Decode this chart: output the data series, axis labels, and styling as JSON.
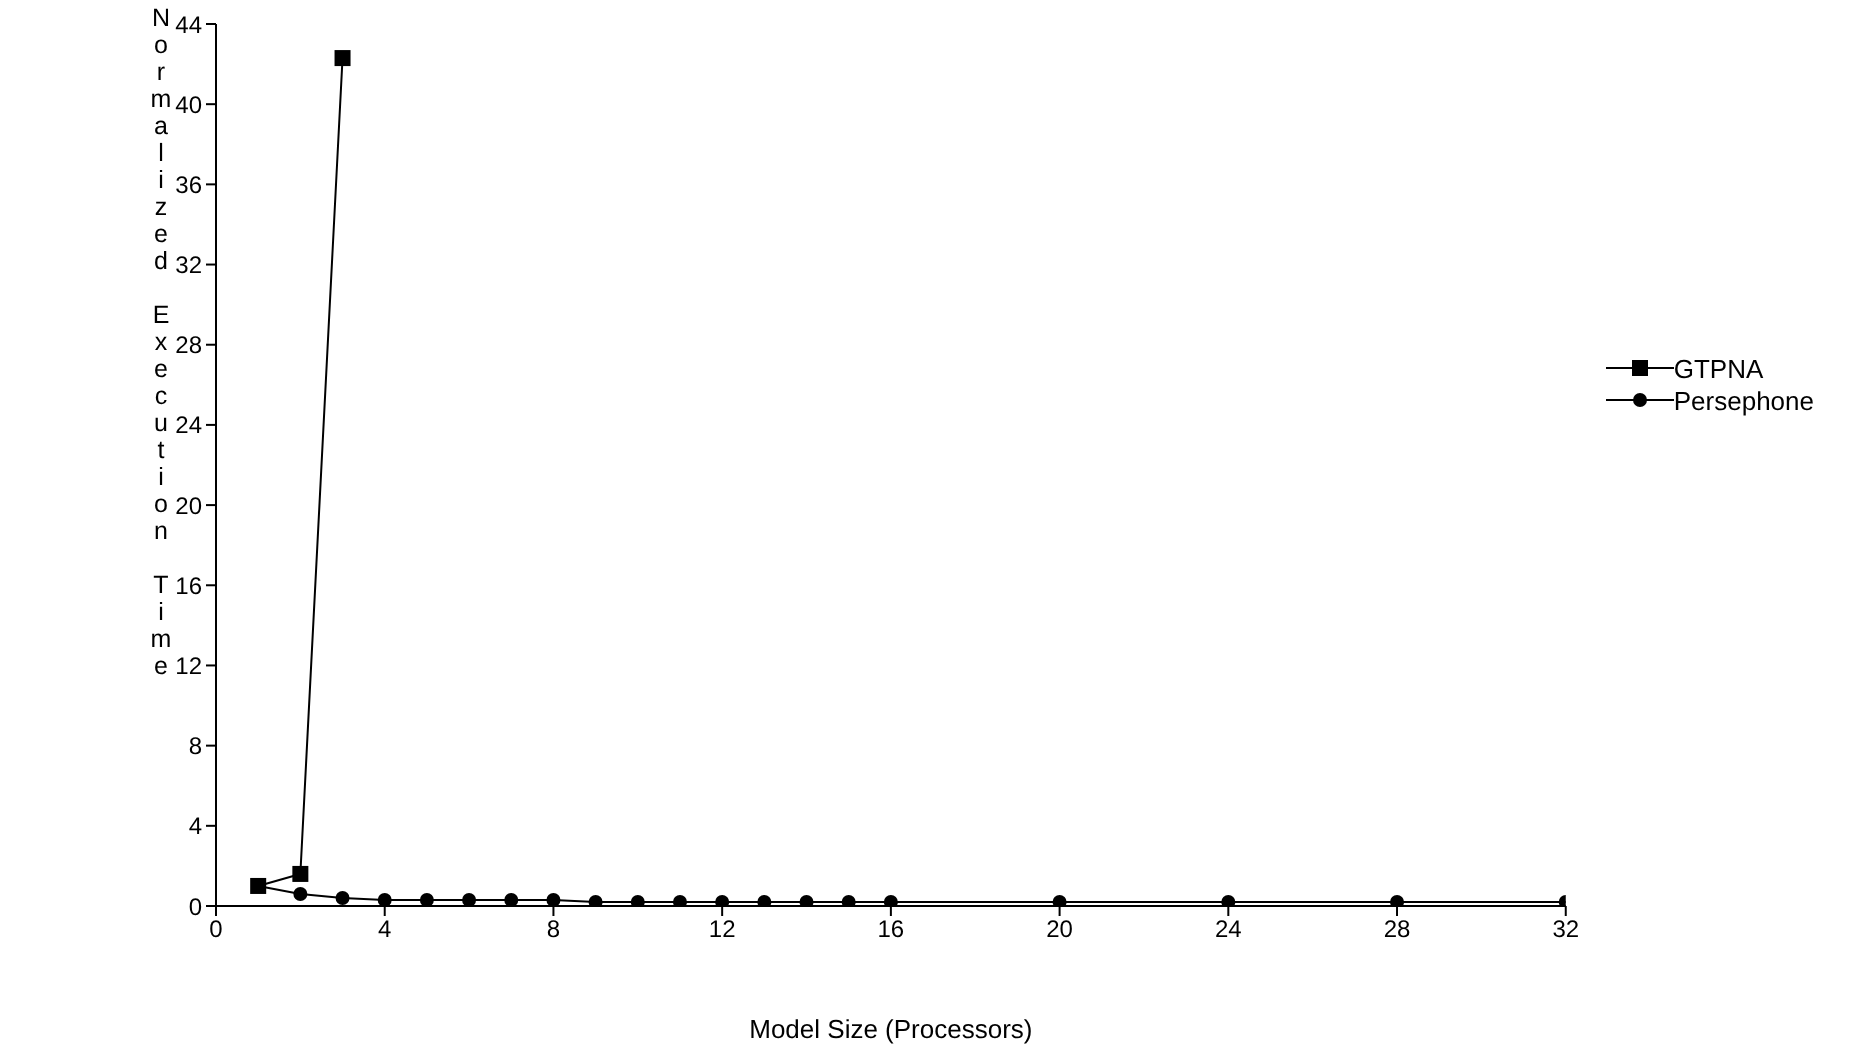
{
  "chart_data": {
    "type": "line",
    "xlabel": "Model Size (Processors)",
    "ylabel": "Normalized Execution Time",
    "xlim": [
      0,
      32
    ],
    "xticks": [
      0,
      4,
      8,
      12,
      16,
      20,
      24,
      28,
      32
    ],
    "ylim": [
      0,
      44
    ],
    "yticks": [
      0,
      4,
      8,
      12,
      16,
      20,
      24,
      28,
      32,
      36,
      40,
      44
    ],
    "grid": false,
    "legend": "right",
    "series": [
      {
        "name": "GTPNA",
        "color": "#000000",
        "marker": "square",
        "x": [
          1,
          2,
          3
        ],
        "values": [
          1,
          1.6,
          42.3
        ]
      },
      {
        "name": "Persephone",
        "color": "#000000",
        "marker": "circle",
        "x": [
          1,
          2,
          3,
          4,
          5,
          6,
          7,
          8,
          9,
          10,
          11,
          12,
          13,
          14,
          15,
          16,
          20,
          24,
          28,
          32
        ],
        "values": [
          1,
          0.6,
          0.4,
          0.3,
          0.3,
          0.3,
          0.3,
          0.3,
          0.2,
          0.2,
          0.2,
          0.2,
          0.2,
          0.2,
          0.2,
          0.2,
          0.2,
          0.2,
          0.2,
          0.2
        ]
      }
    ]
  }
}
